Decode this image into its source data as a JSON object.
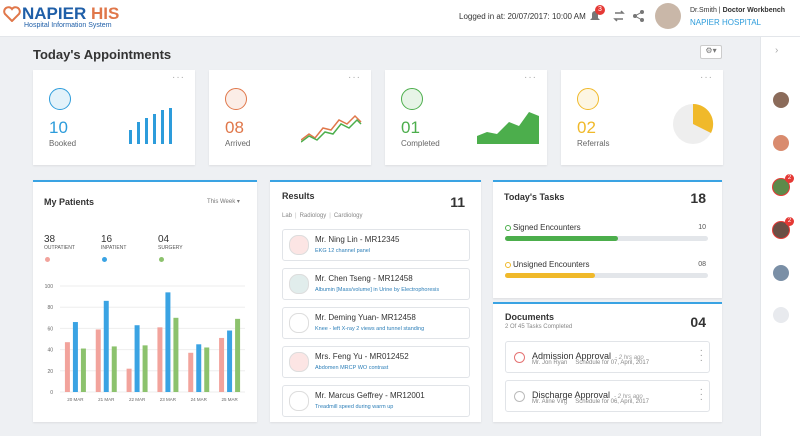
{
  "header": {
    "logo": "NAPIER",
    "logo_accent": "HIS",
    "logo_subtitle": "Hospital Information System",
    "login": "Logged in at: 20/07/2017: 10:00 AM",
    "notifications": "3",
    "user_name": "Dr.Smith",
    "user_role": "Doctor Workbench",
    "hospital": "NAPIER HOSPITAL"
  },
  "appointments": {
    "title": "Today's Appointments",
    "cards": [
      {
        "value": "10",
        "label": "Booked",
        "color": "#2d9cdb"
      },
      {
        "value": "08",
        "label": "Arrived",
        "color": "#e0774a"
      },
      {
        "value": "01",
        "label": "Completed",
        "color": "#4cae4c"
      },
      {
        "value": "02",
        "label": "Referrals",
        "color": "#f0b92a"
      }
    ]
  },
  "my_patients": {
    "title": "My Patients",
    "period": "This Week",
    "stats": [
      {
        "value": "38",
        "label": "OUTPATIENT",
        "color": "#f2a39c"
      },
      {
        "value": "16",
        "label": "INPATIENT",
        "color": "#3aa3e3"
      },
      {
        "value": "04",
        "label": "SURGERY",
        "color": "#8cc26d"
      }
    ],
    "chart": {
      "type": "bar",
      "categories": [
        "20 MAR",
        "21 MAR",
        "22 MAR",
        "23 MAR",
        "24 MAR",
        "25 MAR"
      ],
      "series": [
        {
          "color": "#f2a39c",
          "values": [
            47,
            59,
            22,
            61,
            37,
            51
          ]
        },
        {
          "color": "#3aa3e3",
          "values": [
            66,
            86,
            63,
            94,
            45,
            58
          ]
        },
        {
          "color": "#8cc26d",
          "values": [
            41,
            43,
            44,
            70,
            42,
            69
          ]
        }
      ],
      "ylim": [
        0,
        100
      ],
      "yticks": [
        0,
        20,
        40,
        60,
        80,
        100
      ],
      "grid": true
    }
  },
  "results": {
    "title": "Results",
    "tabs": [
      "Lab",
      "Radiology",
      "Cardiology"
    ],
    "count": "11",
    "items": [
      {
        "name": "Mr. Ning Lin - MR12345",
        "detail": "EKG 12 channel panel"
      },
      {
        "name": "Mr. Chen Tseng - MR12458",
        "detail": "Albumin [Mass/volume] in Urine by Electrophoresis"
      },
      {
        "name": "Mr. Deming Yuan- MR12458",
        "detail": "Knee - left X-ray 2 views and tunnel standing"
      },
      {
        "name": "Mrs. Feng Yu  - MR012452",
        "detail": "Abdomen MRCP WO contrast"
      },
      {
        "name": "Mr. Marcus Geffrey  - MR12001",
        "detail": "Treadmill speed during warm up"
      }
    ]
  },
  "tasks": {
    "title": "Today's Tasks",
    "count": "18",
    "items": [
      {
        "label": "Signed Encounters",
        "count": "10",
        "color": "#4cae4c"
      },
      {
        "label": "Unsigned Encounters",
        "count": "08",
        "color": "#f0b92a"
      }
    ]
  },
  "documents": {
    "title": "Documents",
    "subtitle": "2 Of 45 Tasks Completed",
    "count": "04",
    "items": [
      {
        "title": "Admission Approval",
        "time": "- 2 hrs ago",
        "patient": "Mr. Jon Ryan",
        "schedule": "Schedule for 07, April, 2017"
      },
      {
        "title": "Discharge Approval",
        "time": "- 2 hrs ago",
        "patient": "Mr. Aline Virg",
        "schedule": "Schedule for 06, April, 2017"
      }
    ]
  },
  "sidebar": {
    "badges": [
      "2",
      "2"
    ]
  }
}
